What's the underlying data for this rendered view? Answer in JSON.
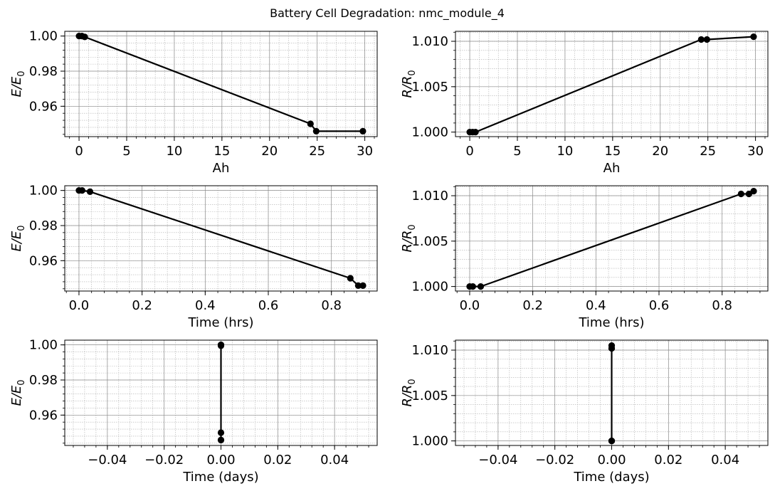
{
  "title": "Battery Cell Degradation: nmc_module_4",
  "colors": {
    "line": "#000000",
    "grid_major": "#8c8c8c",
    "grid_minor": "#b0b0b0"
  },
  "chart_data": [
    {
      "type": "line",
      "xlabel": "Ah",
      "ylabel": {
        "main": "E/E",
        "sub": "0"
      },
      "xlim": [
        -1.5,
        31.3
      ],
      "ylim": [
        0.9427,
        1.0027
      ],
      "xticks": [
        0,
        5,
        10,
        15,
        20,
        25,
        30
      ],
      "xtick_labels": [
        "0",
        "5",
        "10",
        "15",
        "20",
        "25",
        "30"
      ],
      "yticks": [
        0.96,
        0.98,
        1.0
      ],
      "ytick_labels": [
        "0.96",
        "0.98",
        "1.00"
      ],
      "grid": true,
      "marker": "circle",
      "x": [
        0.0,
        0.3,
        0.6,
        24.3,
        24.9,
        29.8
      ],
      "y": [
        1.0,
        1.0,
        0.9995,
        0.95,
        0.9458,
        0.9458
      ]
    },
    {
      "type": "line",
      "xlabel": "Ah",
      "ylabel": {
        "main": "R/R",
        "sub": "0"
      },
      "xlim": [
        -1.5,
        31.3
      ],
      "ylim": [
        0.9995,
        1.0111
      ],
      "xticks": [
        0,
        5,
        10,
        15,
        20,
        25,
        30
      ],
      "xtick_labels": [
        "0",
        "5",
        "10",
        "15",
        "20",
        "25",
        "30"
      ],
      "yticks": [
        1.0,
        1.005,
        1.01
      ],
      "ytick_labels": [
        "1.000",
        "1.005",
        "1.010"
      ],
      "grid": true,
      "marker": "circle",
      "x": [
        0.0,
        0.3,
        0.6,
        24.3,
        24.9,
        29.8
      ],
      "y": [
        1.0,
        1.0,
        1.0,
        1.0102,
        1.0102,
        1.0105
      ]
    },
    {
      "type": "line",
      "xlabel": "Time (hrs)",
      "ylabel": {
        "main": "E/E",
        "sub": "0"
      },
      "xlim": [
        -0.045,
        0.945
      ],
      "ylim": [
        0.9427,
        1.0027
      ],
      "xticks": [
        0.0,
        0.2,
        0.4,
        0.6,
        0.8
      ],
      "xtick_labels": [
        "0.0",
        "0.2",
        "0.4",
        "0.6",
        "0.8"
      ],
      "yticks": [
        0.96,
        0.98,
        1.0
      ],
      "ytick_labels": [
        "0.96",
        "0.98",
        "1.00"
      ],
      "grid": true,
      "marker": "circle",
      "x": [
        0.0,
        0.01,
        0.035,
        0.86,
        0.885,
        0.9
      ],
      "y": [
        1.0,
        1.0,
        0.9993,
        0.95,
        0.9458,
        0.9458
      ]
    },
    {
      "type": "line",
      "xlabel": "Time (hrs)",
      "ylabel": {
        "main": "R/R",
        "sub": "0"
      },
      "xlim": [
        -0.045,
        0.945
      ],
      "ylim": [
        0.9995,
        1.0111
      ],
      "xticks": [
        0.0,
        0.2,
        0.4,
        0.6,
        0.8
      ],
      "xtick_labels": [
        "0.0",
        "0.2",
        "0.4",
        "0.6",
        "0.8"
      ],
      "yticks": [
        1.0,
        1.005,
        1.01
      ],
      "ytick_labels": [
        "1.000",
        "1.005",
        "1.010"
      ],
      "grid": true,
      "marker": "circle",
      "x": [
        0.0,
        0.01,
        0.035,
        0.86,
        0.885,
        0.9
      ],
      "y": [
        1.0,
        1.0,
        1.0,
        1.0102,
        1.0102,
        1.0105
      ]
    },
    {
      "type": "line",
      "xlabel": "Time (days)",
      "ylabel": {
        "main": "E/E",
        "sub": "0"
      },
      "xlim": [
        -0.055,
        0.055
      ],
      "ylim": [
        0.9427,
        1.0027
      ],
      "xticks": [
        -0.04,
        -0.02,
        0.0,
        0.02,
        0.04
      ],
      "xtick_labels": [
        "−0.04",
        "−0.02",
        "0.00",
        "0.02",
        "0.04"
      ],
      "yticks": [
        0.96,
        0.98,
        1.0
      ],
      "ytick_labels": [
        "0.96",
        "0.98",
        "1.00"
      ],
      "grid": true,
      "marker": "circle",
      "x": [
        0.0,
        0.0,
        0.0,
        0.0,
        0.0,
        0.0
      ],
      "y": [
        1.0,
        1.0,
        0.9995,
        0.95,
        0.9458,
        0.9458
      ]
    },
    {
      "type": "line",
      "xlabel": "Time (days)",
      "ylabel": {
        "main": "R/R",
        "sub": "0"
      },
      "xlim": [
        -0.055,
        0.055
      ],
      "ylim": [
        0.9995,
        1.0111
      ],
      "xticks": [
        -0.04,
        -0.02,
        0.0,
        0.02,
        0.04
      ],
      "xtick_labels": [
        "−0.04",
        "−0.02",
        "0.00",
        "0.02",
        "0.04"
      ],
      "yticks": [
        1.0,
        1.005,
        1.01
      ],
      "ytick_labels": [
        "1.000",
        "1.005",
        "1.010"
      ],
      "grid": true,
      "marker": "circle",
      "x": [
        0.0,
        0.0,
        0.0,
        0.0,
        0.0,
        0.0
      ],
      "y": [
        1.0,
        1.0,
        1.0,
        1.0102,
        1.0102,
        1.0105
      ]
    }
  ]
}
